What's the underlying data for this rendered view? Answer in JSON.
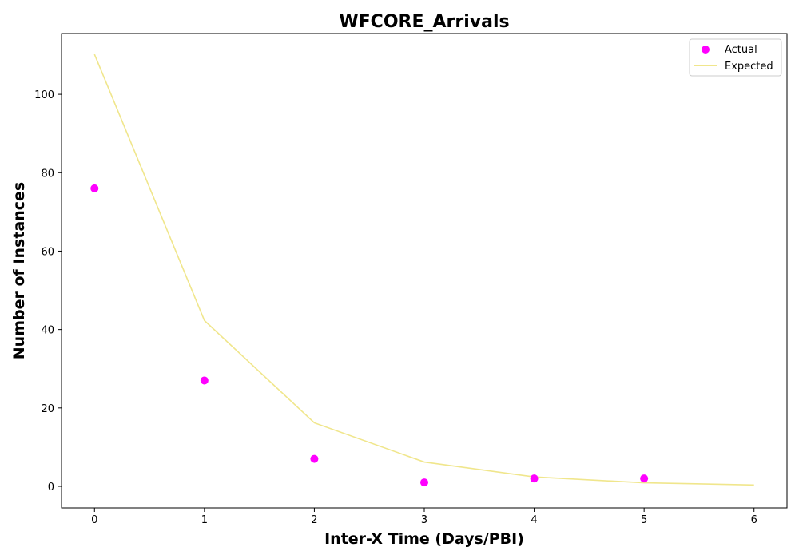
{
  "chart_data": {
    "type": "scatter",
    "title": "WFCORE_Arrivals",
    "xlabel": "Inter-X Time (Days/PBI)",
    "ylabel": "Number of Instances",
    "xlim": [
      -0.3,
      6.3
    ],
    "ylim": [
      -5.5,
      115.5
    ],
    "xticks": [
      0,
      1,
      2,
      3,
      4,
      5,
      6
    ],
    "yticks": [
      0,
      20,
      40,
      60,
      80,
      100
    ],
    "grid": false,
    "legend_position": "top-right",
    "series": [
      {
        "name": "Actual",
        "kind": "scatter",
        "color": "#ff00ff",
        "x": [
          0,
          1,
          2,
          3,
          4,
          5
        ],
        "y": [
          76,
          27,
          7,
          1,
          2,
          2
        ]
      },
      {
        "name": "Expected",
        "kind": "line",
        "color": "#f0e68c",
        "x": [
          0,
          1,
          2,
          3,
          4,
          5,
          6
        ],
        "y": [
          110.2,
          42.3,
          16.2,
          6.2,
          2.4,
          0.9,
          0.35
        ]
      }
    ]
  }
}
